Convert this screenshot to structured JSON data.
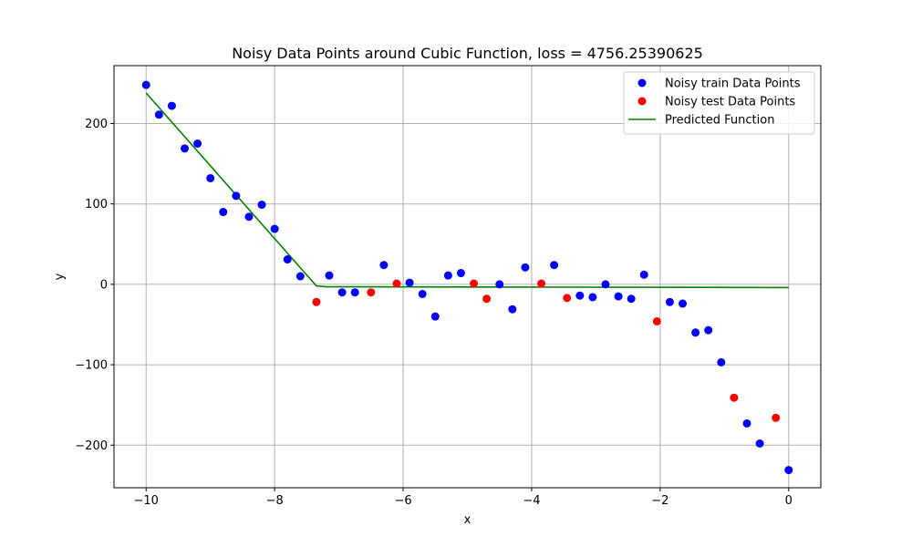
{
  "chart_data": {
    "type": "scatter",
    "title": "Noisy Data Points around Cubic Function, loss = 4756.25390625",
    "xlabel": "x",
    "ylabel": "y",
    "xlim": [
      -10.5,
      0.5
    ],
    "ylim": [
      -253,
      272
    ],
    "xticks": [
      -10,
      -8,
      -6,
      -4,
      -2,
      0
    ],
    "yticks": [
      -200,
      -100,
      0,
      100,
      200
    ],
    "xtick_labels": [
      "−10",
      "−8",
      "−6",
      "−4",
      "−2",
      "0"
    ],
    "ytick_labels": [
      "−200",
      "−100",
      "0",
      "100",
      "200"
    ],
    "grid": true,
    "legend_position": "top-right",
    "series": [
      {
        "name": "Noisy train Data Points",
        "kind": "scatter",
        "color": "#0000ff",
        "x": [
          -10.0,
          -9.8,
          -9.6,
          -9.4,
          -9.2,
          -9.0,
          -8.8,
          -8.6,
          -8.4,
          -8.2,
          -8.0,
          -7.8,
          -7.6,
          -7.15,
          -6.95,
          -6.75,
          -6.3,
          -5.9,
          -5.7,
          -5.5,
          -5.3,
          -5.1,
          -4.5,
          -4.3,
          -4.1,
          -3.65,
          -3.25,
          -3.05,
          -2.85,
          -2.65,
          -2.45,
          -2.25,
          -1.85,
          -1.65,
          -1.45,
          -1.25,
          -1.05,
          -0.65,
          -0.45,
          0.0
        ],
        "y": [
          248,
          211,
          222,
          169,
          175,
          132,
          90,
          110,
          84,
          99,
          69,
          31,
          10,
          11,
          -10,
          -10,
          24,
          2,
          -12,
          -40,
          11,
          14,
          0,
          -31,
          21,
          24,
          -14,
          -16,
          0,
          -15,
          -18,
          12,
          -22,
          -24,
          -60,
          -57,
          -97,
          -173,
          -198,
          -231
        ]
      },
      {
        "name": "Noisy test Data Points",
        "kind": "scatter",
        "color": "#ff0000",
        "x": [
          -7.35,
          -6.5,
          -6.1,
          -4.9,
          -4.7,
          -3.85,
          -3.45,
          -2.05,
          -0.85,
          -0.2
        ],
        "y": [
          -22,
          -10,
          1,
          1,
          -18,
          1,
          -17,
          -46,
          -141,
          -166
        ]
      },
      {
        "name": "Predicted Function",
        "kind": "line",
        "color": "#008000",
        "x": [
          -10.0,
          -7.35,
          -7.2,
          0.0
        ],
        "y": [
          238,
          -2,
          -3,
          -4
        ]
      }
    ]
  }
}
